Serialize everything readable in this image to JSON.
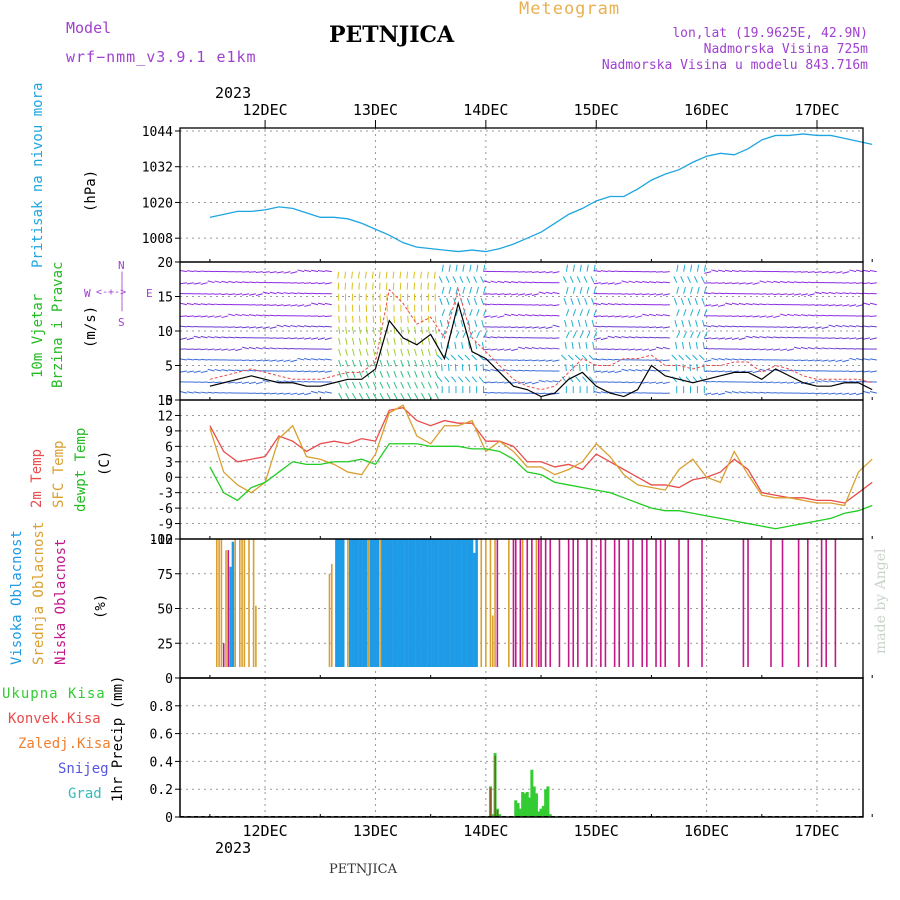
{
  "header": {
    "model_label": "Model",
    "model_name": "wrf−nmm_v3.9.1  e1km",
    "station": "PETNJICA",
    "meteogram_label": "Meteogram",
    "lonlat": "lon,lat (19.9625E, 42.9N)",
    "altitude": "Nadmorska Visina 725m",
    "model_altitude": "Nadmorska Visina u modelu 843.716m",
    "footer_station": "PETNJICA",
    "made_by": "made by Angel"
  },
  "colors": {
    "pressure": "#1fa5e0",
    "wind_label": "#22bb22",
    "temp2m": "#e84c4c",
    "sfc_temp": "#d9a030",
    "dewpoint": "#22cc22",
    "high_cloud": "#1e9be6",
    "mid_cloud": "#d9a030",
    "low_cloud": "#c2188a",
    "precip_total": "#33cc33",
    "precip_conv": "#e84c4c",
    "precip_frozen": "#f08030",
    "snow": "#5555e0",
    "hail": "#33bbbb",
    "header_purple": "#a040d0",
    "meteogram_orange": "#e8b050"
  },
  "chart_data": [
    {
      "type": "line",
      "panel": "pressure",
      "title": "",
      "year_label": "2023",
      "x_day_labels": [
        "12DEC",
        "13DEC",
        "14DEC",
        "15DEC",
        "16DEC",
        "17DEC"
      ],
      "x": [
        0,
        3,
        6,
        9,
        12,
        15,
        18,
        21,
        24,
        27,
        30,
        33,
        36,
        39,
        42,
        45,
        48,
        51,
        54,
        57,
        60,
        63,
        66,
        69,
        72,
        75,
        78,
        81,
        84,
        87,
        90,
        93,
        96,
        99,
        102,
        105,
        108,
        111,
        114,
        117,
        120,
        123,
        126,
        129,
        132,
        135,
        138,
        141,
        144
      ],
      "values": [
        1015,
        1016,
        1017,
        1017,
        1017.5,
        1018.5,
        1018,
        1016.5,
        1015,
        1015,
        1014.5,
        1013,
        1011,
        1009,
        1006.5,
        1005,
        1004.5,
        1004,
        1003.5,
        1004,
        1003.5,
        1004.5,
        1006,
        1008,
        1010,
        1013,
        1016,
        1018,
        1020.5,
        1022,
        1022,
        1024.5,
        1027.5,
        1029.5,
        1031,
        1033.5,
        1035.5,
        1036.5,
        1036,
        1038,
        1041,
        1042.5,
        1042.5,
        1043,
        1042.5,
        1042.5,
        1041.5,
        1040.5,
        1039.5
      ],
      "ylim": [
        1000,
        1045
      ],
      "yticks": [
        1008,
        1020,
        1032,
        1044
      ],
      "ylabel_name": "Pritisak na nivou mora",
      "ylabel_unit": "(hPa)",
      "grid": true
    },
    {
      "type": "line",
      "panel": "wind",
      "x": [
        0,
        3,
        6,
        9,
        12,
        15,
        18,
        21,
        24,
        27,
        30,
        33,
        36,
        39,
        42,
        45,
        48,
        51,
        54,
        57,
        60,
        63,
        66,
        69,
        72,
        75,
        78,
        81,
        84,
        87,
        90,
        93,
        96,
        99,
        102,
        105,
        108,
        111,
        114,
        117,
        120,
        123,
        126,
        129,
        132,
        135,
        138,
        141,
        144
      ],
      "series": [
        {
          "name": "speed",
          "values": [
            2,
            2.5,
            3,
            3.5,
            3,
            2.5,
            2.5,
            2,
            2,
            2.5,
            3,
            3,
            4.5,
            11.5,
            9,
            8,
            9.5,
            6,
            14,
            7,
            6,
            4,
            2,
            1.5,
            0.5,
            1,
            3,
            4,
            2,
            1,
            0.5,
            1.5,
            5,
            3.5,
            3,
            2.5,
            3,
            3.5,
            4,
            4,
            3,
            4.5,
            3.5,
            2.5,
            2,
            2,
            2.5,
            2.5,
            1.5
          ]
        },
        {
          "name": "gust",
          "values": [
            3,
            3.5,
            4,
            4.5,
            4,
            3.5,
            3,
            3,
            3,
            3.5,
            4,
            4,
            5.5,
            16,
            14,
            11,
            12,
            9,
            16,
            9,
            7,
            5,
            3,
            2,
            1.5,
            2,
            4,
            6,
            5,
            5,
            6,
            6,
            6.5,
            5,
            5,
            4.5,
            5,
            5,
            5.5,
            5.5,
            4,
            5,
            4.5,
            3.5,
            3,
            3,
            3,
            3,
            2.5
          ]
        }
      ],
      "ylim": [
        0,
        20
      ],
      "yticks": [
        0,
        5,
        10,
        15,
        20
      ],
      "ylabel_name": [
        "10m Vjetar",
        "Brzina i Pravac"
      ],
      "ylabel_unit": "(m/s)",
      "compass": {
        "n": "N",
        "w": "W",
        "e": "E",
        "s": "S"
      },
      "grid": true
    },
    {
      "type": "line",
      "panel": "temperature",
      "x": [
        0,
        3,
        6,
        9,
        12,
        15,
        18,
        21,
        24,
        27,
        30,
        33,
        36,
        39,
        42,
        45,
        48,
        51,
        54,
        57,
        60,
        63,
        66,
        69,
        72,
        75,
        78,
        81,
        84,
        87,
        90,
        93,
        96,
        99,
        102,
        105,
        108,
        111,
        114,
        117,
        120,
        123,
        126,
        129,
        132,
        135,
        138,
        141,
        144
      ],
      "series": [
        {
          "name": "2m Temp",
          "values": [
            10,
            5,
            3,
            3.5,
            4,
            8,
            7,
            5,
            6.5,
            7,
            6.5,
            7.5,
            7,
            13,
            13.5,
            11,
            10,
            11,
            10.5,
            10.5,
            7,
            7,
            6,
            3,
            3,
            2,
            2.5,
            1.5,
            4.5,
            3,
            1.5,
            0,
            -1.5,
            -1.5,
            -2,
            -0.5,
            0,
            1,
            3.5,
            1.5,
            -3,
            -3.5,
            -4,
            -4,
            -4.5,
            -4.5,
            -5,
            -3,
            -1
          ]
        },
        {
          "name": "SFC Temp",
          "values": [
            9.5,
            1,
            -1.5,
            -3,
            -1,
            7.5,
            10,
            4,
            3.5,
            2.5,
            1,
            0.5,
            4.5,
            12.5,
            14,
            8,
            6.5,
            10,
            10,
            11,
            5,
            7,
            5,
            2,
            2,
            0.5,
            1.5,
            3,
            6.5,
            4,
            0.5,
            -1.5,
            -2,
            -2.5,
            1.5,
            3.5,
            0,
            -1,
            5,
            0.5,
            -3.5,
            -4,
            -4,
            -4.5,
            -5,
            -5,
            -5.5,
            1,
            3.5
          ]
        },
        {
          "name": "dewpt Temp",
          "values": [
            2,
            -3,
            -4.5,
            -2,
            -1,
            1,
            3,
            2.5,
            2.5,
            3,
            3,
            3.5,
            2.5,
            6.5,
            6.5,
            6.5,
            6,
            6,
            6,
            5.5,
            5.5,
            5,
            3.5,
            1,
            0.5,
            -1,
            -1.5,
            -2,
            -2.5,
            -3,
            -4,
            -5,
            -6,
            -6.5,
            -6.5,
            -7,
            -7.5,
            -8,
            -8.5,
            -9,
            -9.5,
            -10,
            -9.5,
            -9,
            -8.5,
            -8,
            -7,
            -6.5,
            -5.5
          ]
        }
      ],
      "ylim": [
        -12,
        15
      ],
      "yticks": [
        -12,
        -9,
        -6,
        -3,
        0,
        3,
        6,
        9,
        12,
        15
      ],
      "ylabel_names": [
        "2m Temp",
        "SFC Temp",
        "dewpt Temp"
      ],
      "ylabel_unit": "(C)",
      "grid": true
    },
    {
      "type": "bar",
      "panel": "cloud",
      "series": [
        {
          "name": "Visoka Oblacnost",
          "x": [
            4.5,
            5,
            27.5,
            28,
            28.5,
            29,
            30.5,
            31,
            31.5,
            32,
            32.5,
            33,
            33.5,
            34,
            35,
            35.5,
            36,
            36.5,
            37.5,
            38,
            38.5,
            39,
            39.5,
            40,
            40.5,
            41,
            41.5,
            42,
            42.5,
            43,
            43.5,
            44,
            44.5,
            45,
            45.5,
            46,
            46.5,
            47,
            47.5,
            48,
            48.5,
            49,
            49.5,
            50,
            50.5,
            51,
            51.5,
            52,
            52.5,
            53,
            53.5,
            54,
            54.5,
            55,
            55.5,
            56,
            56.5,
            57,
            57.5,
            58
          ],
          "values": [
            80,
            98,
            100,
            100,
            100,
            100,
            100,
            100,
            100,
            100,
            100,
            100,
            100,
            100,
            100,
            100,
            100,
            100,
            100,
            100,
            100,
            100,
            100,
            100,
            100,
            100,
            100,
            100,
            100,
            100,
            100,
            100,
            100,
            100,
            100,
            100,
            100,
            100,
            100,
            100,
            100,
            100,
            100,
            100,
            100,
            100,
            100,
            100,
            100,
            100,
            100,
            100,
            100,
            100,
            100,
            100,
            100,
            100,
            90,
            100
          ]
        },
        {
          "name": "Srednja Oblacnost",
          "x": [
            1.5,
            2,
            2.5,
            3.5,
            5.5,
            6.5,
            7,
            7.5,
            8.5,
            9.5,
            10,
            26,
            26.5,
            30,
            34.5,
            37,
            41,
            43,
            45,
            46,
            47.5,
            49,
            50,
            51,
            52.5,
            54,
            55.5,
            57,
            59,
            60,
            61,
            61.5,
            62,
            65,
            68,
            71
          ],
          "values": [
            100,
            100,
            100,
            92,
            100,
            100,
            100,
            100,
            100,
            100,
            52,
            75,
            82,
            100,
            100,
            100,
            100,
            100,
            100,
            100,
            100,
            100,
            100,
            100,
            100,
            100,
            100,
            100,
            100,
            100,
            100,
            45,
            100,
            100,
            100,
            100
          ]
        },
        {
          "name": "Niska Oblacnost",
          "x": [
            3,
            4,
            38.5,
            62.5,
            66,
            66.5,
            67.5,
            69,
            70,
            71.5,
            72,
            73,
            74,
            76,
            78,
            79,
            80,
            82,
            83,
            85,
            86,
            88,
            89,
            91,
            92,
            94,
            95,
            97,
            98,
            99,
            102,
            104,
            107,
            116,
            117,
            122,
            124.5,
            128,
            130,
            133,
            134,
            136
          ],
          "values": [
            25,
            92,
            100,
            100,
            100,
            100,
            100,
            100,
            100,
            100,
            100,
            100,
            100,
            100,
            100,
            100,
            100,
            100,
            100,
            100,
            100,
            100,
            100,
            100,
            100,
            100,
            100,
            100,
            100,
            100,
            100,
            100,
            100,
            100,
            100,
            100,
            100,
            100,
            100,
            100,
            100,
            100
          ]
        }
      ],
      "ylim": [
        0,
        100
      ],
      "yticks": [
        0,
        25,
        50,
        75,
        100
      ],
      "ylabel_unit": "(%)",
      "grid": true
    },
    {
      "type": "bar",
      "panel": "precipitation",
      "series": [
        {
          "name": "Ukupna Kisa",
          "x": [
            61,
            61.5,
            62,
            62.5,
            63,
            66.5,
            67,
            67.5,
            68,
            68.5,
            69,
            69.5,
            70,
            70.5,
            71,
            71.5,
            72,
            72.5,
            73,
            73.5,
            74
          ],
          "values": [
            0.22,
            0.02,
            0.46,
            0.06,
            0.02,
            0.12,
            0.1,
            0.06,
            0.18,
            0.17,
            0.18,
            0.14,
            0.34,
            0.22,
            0.17,
            0.04,
            0.06,
            0.08,
            0.2,
            0.22,
            0.02
          ]
        },
        {
          "name": "Konvek.Kisa",
          "x": [
            61,
            62,
            62.5
          ],
          "values": [
            0.21,
            0.44,
            0.05
          ]
        },
        {
          "name": "Zaledj.Kisa",
          "x": [],
          "values": []
        },
        {
          "name": "Snijeg",
          "x": [],
          "values": []
        },
        {
          "name": "Grad",
          "x": [],
          "values": []
        }
      ],
      "ylim": [
        0,
        1
      ],
      "yticks": [
        0,
        0.2,
        0.4,
        0.6,
        0.8
      ],
      "ylabel": "1hr Precip (mm)",
      "x_day_labels": [
        "12DEC",
        "13DEC",
        "14DEC",
        "15DEC",
        "16DEC",
        "17DEC"
      ],
      "year_label": "2023",
      "grid": true
    }
  ]
}
